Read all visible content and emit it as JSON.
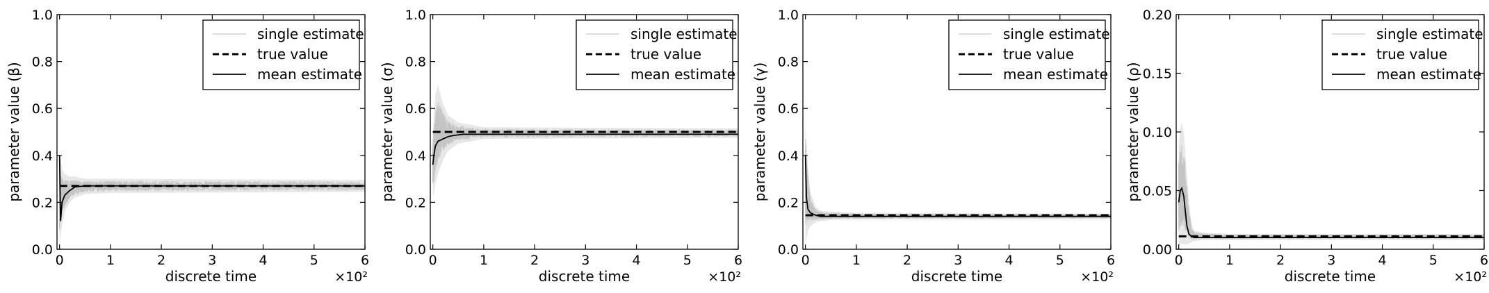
{
  "chart_data": [
    {
      "type": "line",
      "xlabel": "discrete time",
      "ylabel": "parameter value (β)",
      "x_multiplier": "×10²",
      "xlim": [
        0,
        6
      ],
      "ylim": [
        0,
        1.0
      ],
      "xticks": [
        "0",
        "1",
        "2",
        "3",
        "4",
        "5",
        "6"
      ],
      "yticks": [
        "0.0",
        "0.2",
        "0.4",
        "0.6",
        "0.8",
        "1.0"
      ],
      "legend": {
        "placement": "top-right",
        "entries": [
          "single estimate",
          "true value",
          "mean estimate"
        ]
      },
      "series": [
        {
          "name": "true value",
          "style": "dashed",
          "color": "#000000",
          "x": [
            0.0,
            6.0
          ],
          "y": [
            0.27,
            0.27
          ]
        },
        {
          "name": "mean estimate",
          "style": "solid",
          "color": "#000000",
          "x": [
            0.0,
            0.02,
            0.05,
            0.1,
            0.15,
            0.2,
            0.3,
            0.4,
            0.6,
            1.0,
            2.0,
            3.0,
            4.0,
            5.0,
            6.0
          ],
          "y": [
            0.4,
            0.12,
            0.2,
            0.23,
            0.24,
            0.25,
            0.265,
            0.268,
            0.27,
            0.27,
            0.27,
            0.27,
            0.27,
            0.27,
            0.27
          ]
        },
        {
          "name": "single estimate",
          "style": "band",
          "color": "#d3d3d3",
          "x": [
            0.0,
            0.05,
            0.1,
            0.2,
            0.3,
            0.5,
            1.0,
            6.0
          ],
          "y_low": [
            0.02,
            0.1,
            0.16,
            0.2,
            0.22,
            0.235,
            0.24,
            0.245
          ],
          "y_high": [
            0.42,
            0.34,
            0.32,
            0.31,
            0.31,
            0.3,
            0.3,
            0.295
          ]
        }
      ]
    },
    {
      "type": "line",
      "xlabel": "discrete time",
      "ylabel": "parameter value (σ)",
      "x_multiplier": "×10²",
      "xlim": [
        0,
        6
      ],
      "ylim": [
        0,
        1.0
      ],
      "xticks": [
        "0",
        "1",
        "2",
        "3",
        "4",
        "5",
        "6"
      ],
      "yticks": [
        "0.0",
        "0.2",
        "0.4",
        "0.6",
        "0.8",
        "1.0"
      ],
      "legend": {
        "placement": "top-right",
        "entries": [
          "single estimate",
          "true value",
          "mean estimate"
        ]
      },
      "series": [
        {
          "name": "true value",
          "style": "dashed",
          "color": "#000000",
          "x": [
            0.0,
            6.0
          ],
          "y": [
            0.5,
            0.5
          ]
        },
        {
          "name": "mean estimate",
          "style": "solid",
          "color": "#000000",
          "x": [
            0.0,
            0.02,
            0.05,
            0.1,
            0.15,
            0.2,
            0.3,
            0.4,
            0.6,
            1.0,
            2.0,
            3.0,
            4.0,
            5.0,
            6.0
          ],
          "y": [
            0.36,
            0.4,
            0.44,
            0.46,
            0.465,
            0.47,
            0.48,
            0.485,
            0.49,
            0.49,
            0.49,
            0.49,
            0.49,
            0.49,
            0.49
          ]
        },
        {
          "name": "single estimate",
          "style": "band",
          "color": "#d3d3d3",
          "x": [
            0.0,
            0.05,
            0.1,
            0.2,
            0.3,
            0.5,
            1.0,
            6.0
          ],
          "y_low": [
            0.22,
            0.28,
            0.32,
            0.38,
            0.42,
            0.45,
            0.47,
            0.475
          ],
          "y_high": [
            0.5,
            0.66,
            0.7,
            0.62,
            0.57,
            0.54,
            0.52,
            0.515
          ]
        }
      ]
    },
    {
      "type": "line",
      "xlabel": "discrete time",
      "ylabel": "parameter value (γ)",
      "x_multiplier": "×10²",
      "xlim": [
        0,
        6
      ],
      "ylim": [
        0,
        1.0
      ],
      "xticks": [
        "0",
        "1",
        "2",
        "3",
        "4",
        "5",
        "6"
      ],
      "yticks": [
        "0.0",
        "0.2",
        "0.4",
        "0.6",
        "0.8",
        "1.0"
      ],
      "legend": {
        "placement": "top-right",
        "entries": [
          "single estimate",
          "true value",
          "mean estimate"
        ]
      },
      "series": [
        {
          "name": "true value",
          "style": "dashed",
          "color": "#000000",
          "x": [
            0.0,
            6.0
          ],
          "y": [
            0.145,
            0.145
          ]
        },
        {
          "name": "mean estimate",
          "style": "solid",
          "color": "#000000",
          "x": [
            0.0,
            0.02,
            0.05,
            0.1,
            0.15,
            0.2,
            0.3,
            0.4,
            0.6,
            1.0,
            2.0,
            3.0,
            4.0,
            5.0,
            6.0
          ],
          "y": [
            0.4,
            0.22,
            0.17,
            0.155,
            0.15,
            0.145,
            0.14,
            0.14,
            0.14,
            0.14,
            0.14,
            0.14,
            0.14,
            0.14,
            0.14
          ]
        },
        {
          "name": "single estimate",
          "style": "band",
          "color": "#d3d3d3",
          "x": [
            0.0,
            0.05,
            0.1,
            0.2,
            0.3,
            0.5,
            1.0,
            6.0
          ],
          "y_low": [
            0.02,
            0.08,
            0.1,
            0.115,
            0.12,
            0.125,
            0.127,
            0.128
          ],
          "y_high": [
            0.55,
            0.35,
            0.24,
            0.18,
            0.165,
            0.16,
            0.155,
            0.152
          ]
        }
      ]
    },
    {
      "type": "line",
      "xlabel": "discrete time",
      "ylabel": "parameter value (ρ)",
      "x_multiplier": "×10²",
      "xlim": [
        0,
        6
      ],
      "ylim": [
        0,
        0.2
      ],
      "xticks": [
        "0",
        "1",
        "2",
        "3",
        "4",
        "5",
        "6"
      ],
      "yticks": [
        "0.00",
        "0.05",
        "0.10",
        "0.15",
        "0.20"
      ],
      "legend": {
        "placement": "top-right",
        "entries": [
          "single estimate",
          "true value",
          "mean estimate"
        ]
      },
      "series": [
        {
          "name": "true value",
          "style": "dashed",
          "color": "#000000",
          "x": [
            0.0,
            6.0
          ],
          "y": [
            0.011,
            0.011
          ]
        },
        {
          "name": "mean estimate",
          "style": "solid",
          "color": "#000000",
          "x": [
            0.0,
            0.03,
            0.06,
            0.1,
            0.13,
            0.16,
            0.2,
            0.25,
            0.3,
            0.4,
            0.6,
            1.0,
            2.0,
            3.0,
            4.0,
            5.0,
            6.0
          ],
          "y": [
            0.04,
            0.05,
            0.052,
            0.045,
            0.032,
            0.02,
            0.013,
            0.011,
            0.01,
            0.01,
            0.01,
            0.01,
            0.01,
            0.01,
            0.01,
            0.01,
            0.01
          ]
        },
        {
          "name": "single estimate",
          "style": "band",
          "color": "#d3d3d3",
          "x": [
            0.0,
            0.05,
            0.1,
            0.15,
            0.2,
            0.25,
            0.3,
            0.5,
            1.0,
            6.0
          ],
          "y_low": [
            0.002,
            0.005,
            0.004,
            0.004,
            0.005,
            0.006,
            0.007,
            0.008,
            0.008,
            0.008
          ],
          "y_high": [
            0.09,
            0.108,
            0.1,
            0.07,
            0.04,
            0.022,
            0.016,
            0.014,
            0.013,
            0.013
          ]
        }
      ]
    }
  ]
}
